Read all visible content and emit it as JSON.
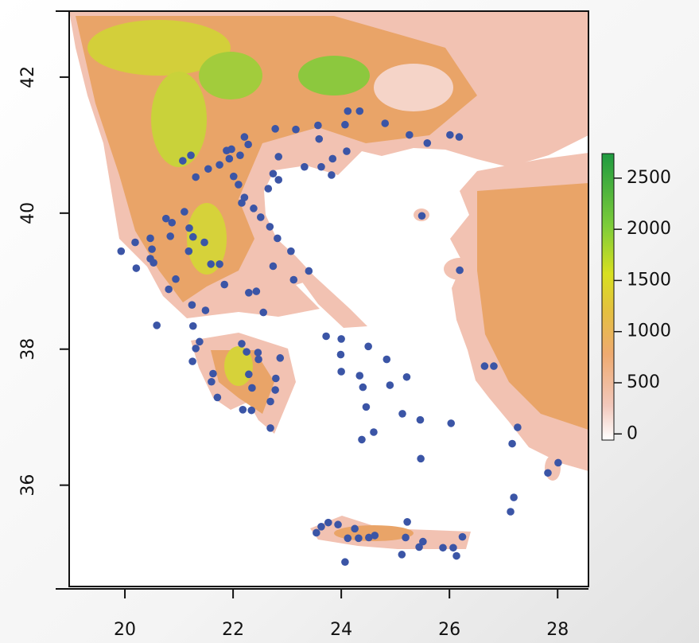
{
  "chart_data": {
    "type": "scatter",
    "xlim": [
      18.97,
      28.57
    ],
    "ylim": [
      34.51,
      42.97
    ],
    "xticks": [
      20,
      22,
      24,
      26,
      28
    ],
    "yticks": [
      36,
      38,
      40,
      42
    ],
    "color": "#3b55a6",
    "colorbar": {
      "lim": [
        -60,
        2740
      ],
      "ticks": [
        0,
        500,
        1000,
        1500,
        2000,
        2500
      ]
    },
    "x": [
      24.12,
      24.34,
      24.81,
      22.78,
      23.16,
      23.57,
      24.07,
      23.59,
      25.26,
      25.59,
      26.01,
      26.18,
      22.21,
      22.28,
      21.97,
      21.88,
      22.13,
      21.93,
      21.75,
      21.54,
      21.22,
      21.07,
      21.31,
      22.84,
      23.32,
      23.63,
      23.84,
      24.1,
      23.82,
      22.74,
      22.84,
      22.65,
      22.01,
      22.1,
      22.21,
      22.16,
      22.38,
      22.51,
      22.68,
      22.82,
      23.07,
      23.4,
      23.12,
      22.74,
      21.1,
      20.76,
      20.87,
      21.19,
      21.26,
      21.47,
      21.18,
      20.84,
      20.47,
      20.19,
      19.93,
      20.5,
      20.47,
      20.53,
      20.21,
      20.94,
      20.81,
      21.59,
      21.75,
      21.84,
      22.29,
      22.43,
      22.56,
      21.24,
      21.49,
      21.26,
      21.38,
      21.31,
      21.25,
      20.59,
      21.63,
      21.6,
      21.71,
      22.16,
      22.25,
      22.46,
      22.47,
      22.87,
      22.29,
      22.35,
      22.79,
      22.78,
      22.18,
      22.34,
      22.69,
      22.69,
      23.72,
      24.0,
      24.5,
      23.99,
      24.0,
      24.84,
      24.34,
      24.4,
      24.9,
      25.21,
      24.46,
      24.38,
      24.6,
      25.13,
      25.46,
      26.03,
      25.47,
      26.19,
      25.49,
      26.65,
      26.82,
      27.26,
      27.16,
      27.19,
      27.13,
      28.01,
      27.82,
      23.54,
      23.76,
      23.63,
      23.94,
      24.25,
      24.32,
      24.12,
      24.51,
      24.62,
      25.22,
      25.19,
      25.12,
      25.44,
      25.51,
      25.88,
      26.07,
      26.13,
      26.24,
      24.07
    ],
    "y": [
      41.5,
      41.5,
      41.32,
      41.24,
      41.23,
      41.29,
      41.3,
      41.09,
      41.15,
      41.03,
      41.15,
      41.12,
      41.12,
      41.01,
      40.94,
      40.92,
      40.85,
      40.8,
      40.71,
      40.65,
      40.85,
      40.77,
      40.53,
      40.83,
      40.68,
      40.68,
      40.8,
      40.91,
      40.56,
      40.58,
      40.49,
      40.36,
      40.54,
      40.42,
      40.23,
      40.15,
      40.07,
      39.94,
      39.8,
      39.63,
      39.44,
      39.15,
      39.02,
      39.22,
      40.02,
      39.92,
      39.86,
      39.78,
      39.65,
      39.57,
      39.44,
      39.66,
      39.63,
      39.57,
      39.44,
      39.47,
      39.33,
      39.27,
      39.19,
      39.03,
      38.88,
      39.25,
      39.25,
      38.95,
      38.83,
      38.85,
      38.54,
      38.65,
      38.57,
      38.34,
      38.11,
      38.01,
      37.82,
      38.35,
      37.64,
      37.52,
      37.29,
      38.08,
      37.96,
      37.95,
      37.85,
      37.87,
      37.63,
      37.43,
      37.57,
      37.4,
      37.11,
      37.1,
      37.23,
      36.84,
      38.19,
      38.15,
      38.04,
      37.92,
      37.67,
      37.85,
      37.61,
      37.44,
      37.47,
      37.59,
      37.15,
      36.67,
      36.78,
      37.05,
      36.96,
      36.91,
      36.39,
      39.16,
      39.96,
      37.75,
      37.75,
      36.85,
      36.61,
      35.82,
      35.61,
      36.33,
      36.18,
      35.3,
      35.45,
      35.39,
      35.42,
      35.36,
      35.22,
      35.22,
      35.23,
      35.26,
      35.46,
      35.23,
      34.98,
      35.09,
      35.17,
      35.08,
      35.08,
      34.96,
      35.24,
      34.87
    ]
  }
}
